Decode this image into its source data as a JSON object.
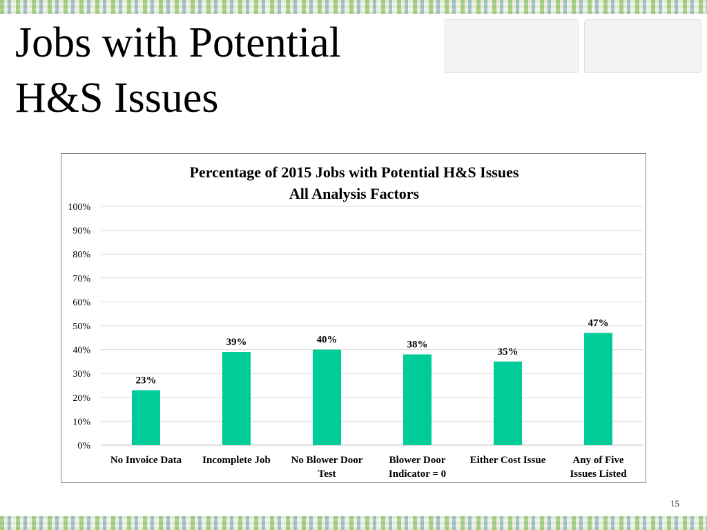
{
  "slide": {
    "title_line1": "Jobs with Potential",
    "title_line2": "H&S Issues",
    "page_number": "15"
  },
  "chart_data": {
    "type": "bar",
    "title": "Percentage of 2015 Jobs with Potential H&S Issues",
    "subtitle": "All Analysis Factors",
    "categories": [
      [
        "No Invoice Data"
      ],
      [
        "Incomplete Job"
      ],
      [
        "No Blower Door",
        "Test"
      ],
      [
        "Blower Door",
        "Indicator = 0"
      ],
      [
        "Either Cost Issue"
      ],
      [
        "Any of Five",
        "Issues Listed"
      ]
    ],
    "values": [
      23,
      39,
      40,
      38,
      35,
      47
    ],
    "value_labels": [
      "23%",
      "39%",
      "40%",
      "38%",
      "35%",
      "47%"
    ],
    "ylim": [
      0,
      100
    ],
    "yticks": [
      0,
      10,
      20,
      30,
      40,
      50,
      60,
      70,
      80,
      90,
      100
    ],
    "ytick_labels": [
      "0%",
      "10%",
      "20%",
      "30%",
      "40%",
      "50%",
      "60%",
      "70%",
      "80%",
      "90%",
      "100%"
    ],
    "grid": true,
    "legend": "none",
    "bar_color": "#00cc99",
    "xlabel": "",
    "ylabel": ""
  }
}
